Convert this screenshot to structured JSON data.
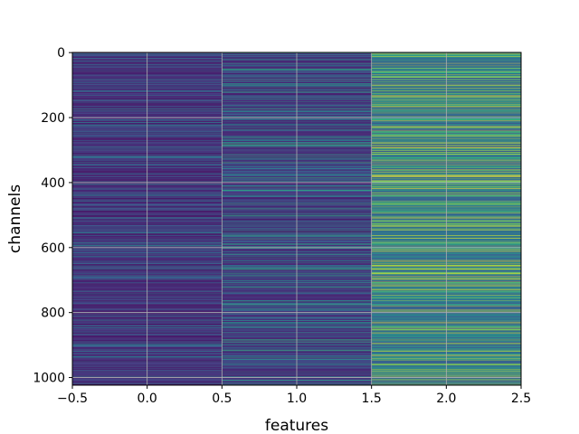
{
  "chart_data": {
    "type": "heatmap",
    "title": "",
    "xlabel": "features",
    "ylabel": "channels",
    "xlim": [
      -0.5,
      2.5
    ],
    "ylim": [
      1023.5,
      -0.5
    ],
    "rows": 1024,
    "columns": [
      {
        "x": 0,
        "mean_level": 0.12,
        "spread": 0.14
      },
      {
        "x": 1,
        "mean_level": 0.16,
        "spread": 0.2
      },
      {
        "x": 2,
        "mean_level": 0.38,
        "spread": 0.26
      }
    ],
    "bright_rows": [
      {
        "column": 2,
        "row": 383,
        "level": 0.92
      },
      {
        "column": 2,
        "row": 962,
        "level": 0.85
      },
      {
        "column": 1,
        "row": 862,
        "level": 0.6
      },
      {
        "column": 1,
        "row": 962,
        "level": 0.55
      }
    ],
    "x_ticks": [
      -0.5,
      0.0,
      0.5,
      1.0,
      1.5,
      2.0,
      2.5
    ],
    "x_tick_labels": [
      "−0.5",
      "0.0",
      "0.5",
      "1.0",
      "1.5",
      "2.0",
      "2.5"
    ],
    "y_ticks": [
      0,
      200,
      400,
      600,
      800,
      1000
    ],
    "y_tick_labels": [
      "0",
      "200",
      "400",
      "600",
      "800",
      "1000"
    ],
    "grid": true,
    "colormap": "viridis",
    "colormap_stops": [
      "#440154",
      "#46327e",
      "#365c8d",
      "#277f8e",
      "#1fa187",
      "#4ac16d",
      "#a0da39",
      "#fde725"
    ]
  }
}
